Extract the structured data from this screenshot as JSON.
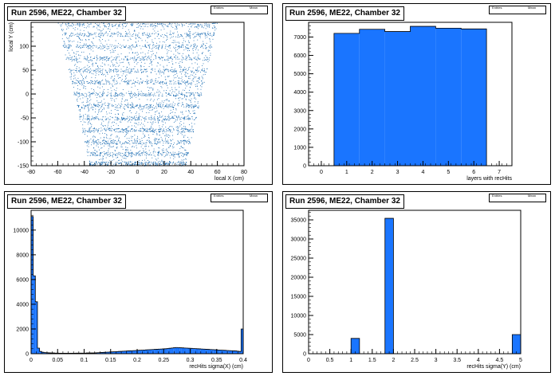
{
  "pads": [
    {
      "title": "Run 2596, ME22, Chamber 32",
      "stats": [
        "Entries",
        "Mean"
      ]
    },
    {
      "title": "Run 2596, ME22, Chamber 32",
      "stats": [
        "Entries",
        "Mean"
      ]
    },
    {
      "title": "Run 2596, ME22, Chamber 32",
      "stats": [
        "Entries",
        "Mean"
      ]
    },
    {
      "title": "Run 2596, ME22, Chamber 32",
      "stats": [
        "Entries",
        "Mean"
      ]
    }
  ],
  "chart_data": [
    {
      "type": "scatter",
      "title": "Run 2596, ME22, Chamber 32",
      "xlabel": "local X (cm)",
      "ylabel": "local Y (cm)",
      "xlim": [
        -80,
        80
      ],
      "ylim": [
        -150,
        150
      ],
      "xticks": [
        -80,
        -60,
        -40,
        -20,
        0,
        20,
        40,
        60,
        80
      ],
      "yticks": [
        -150,
        -100,
        -50,
        0,
        50,
        100
      ],
      "point_color": "#1f6fb4",
      "region": {
        "bottom_y": -150,
        "top_y": 150,
        "bottom_half_width": 36,
        "top_half_width": 60
      },
      "dense_bands_y": [
        -145,
        -125,
        -100,
        -75,
        -50,
        -25,
        0,
        25,
        50,
        75,
        100,
        125,
        145
      ]
    },
    {
      "type": "bar",
      "title": "Run 2596, ME22, Chamber 32",
      "xlabel": "layers with recHits",
      "ylabel": "",
      "xlim": [
        -0.5,
        7.5
      ],
      "ylim": [
        0,
        7800
      ],
      "xticks": [
        0,
        1,
        2,
        3,
        4,
        5,
        6,
        7
      ],
      "yticks": [
        0,
        1000,
        2000,
        3000,
        4000,
        5000,
        6000,
        7000
      ],
      "bin_width": 1,
      "x": [
        1,
        2,
        3,
        4,
        5,
        6
      ],
      "values": [
        7200,
        7420,
        7300,
        7580,
        7480,
        7440
      ],
      "fill_color": "#1a75ff",
      "outline": "step"
    },
    {
      "type": "bar",
      "title": "Run 2596, ME22, Chamber 32",
      "xlabel": "recHits sigma(X) (cm)",
      "ylabel": "",
      "xlim": [
        0,
        0.4
      ],
      "ylim": [
        0,
        11600
      ],
      "xticks": [
        0,
        0.05,
        0.1,
        0.15,
        0.2,
        0.25,
        0.3,
        0.35,
        0.4
      ],
      "xticklabels": [
        "0",
        "0.05",
        "0.1",
        "0.15",
        "0.2",
        "0.25",
        "0.3",
        "0.35",
        "0.4"
      ],
      "yticks": [
        0,
        2000,
        4000,
        6000,
        8000,
        10000
      ],
      "bin_width": 0.004,
      "x_start": 0,
      "values": [
        11100,
        6300,
        4200,
        450,
        180,
        120,
        90,
        80,
        70,
        60,
        60,
        50,
        50,
        40,
        40,
        40,
        40,
        40,
        40,
        40,
        40,
        50,
        50,
        50,
        50,
        50,
        60,
        60,
        60,
        60,
        70,
        80,
        90,
        100,
        110,
        120,
        130,
        140,
        150,
        160,
        170,
        180,
        190,
        200,
        210,
        220,
        230,
        240,
        250,
        260,
        270,
        280,
        290,
        300,
        310,
        320,
        330,
        340,
        350,
        360,
        370,
        380,
        390,
        400,
        420,
        440,
        460,
        480,
        500,
        490,
        480,
        470,
        460,
        450,
        440,
        430,
        420,
        410,
        400,
        390,
        380,
        370,
        360,
        350,
        340,
        330,
        320,
        310,
        300,
        290,
        280,
        270,
        260,
        250,
        240,
        230,
        220,
        200,
        180,
        2000
      ],
      "fill_color": "#1a75ff",
      "outline": "step"
    },
    {
      "type": "bar",
      "title": "Run 2596, ME22, Chamber 32",
      "xlabel": "recHits sigma(Y) (cm)",
      "ylabel": "",
      "xlim": [
        0,
        5
      ],
      "ylim": [
        0,
        37500
      ],
      "xticks": [
        0,
        0.5,
        1,
        1.5,
        2,
        2.5,
        3,
        3.5,
        4,
        4.5,
        5
      ],
      "xticklabels": [
        "0",
        "0.5",
        "1",
        "1.5",
        "2",
        "2.5",
        "3",
        "3.5",
        "4",
        "4.5",
        "5"
      ],
      "yticks": [
        0,
        5000,
        10000,
        15000,
        20000,
        25000,
        30000,
        35000
      ],
      "bin_width": 0.2,
      "bins": [
        {
          "x0": 1.0,
          "value": 4000
        },
        {
          "x0": 1.8,
          "value": 35400
        },
        {
          "x0": 4.8,
          "value": 5000
        }
      ],
      "fill_color": "#1a75ff",
      "outline": "step"
    }
  ]
}
